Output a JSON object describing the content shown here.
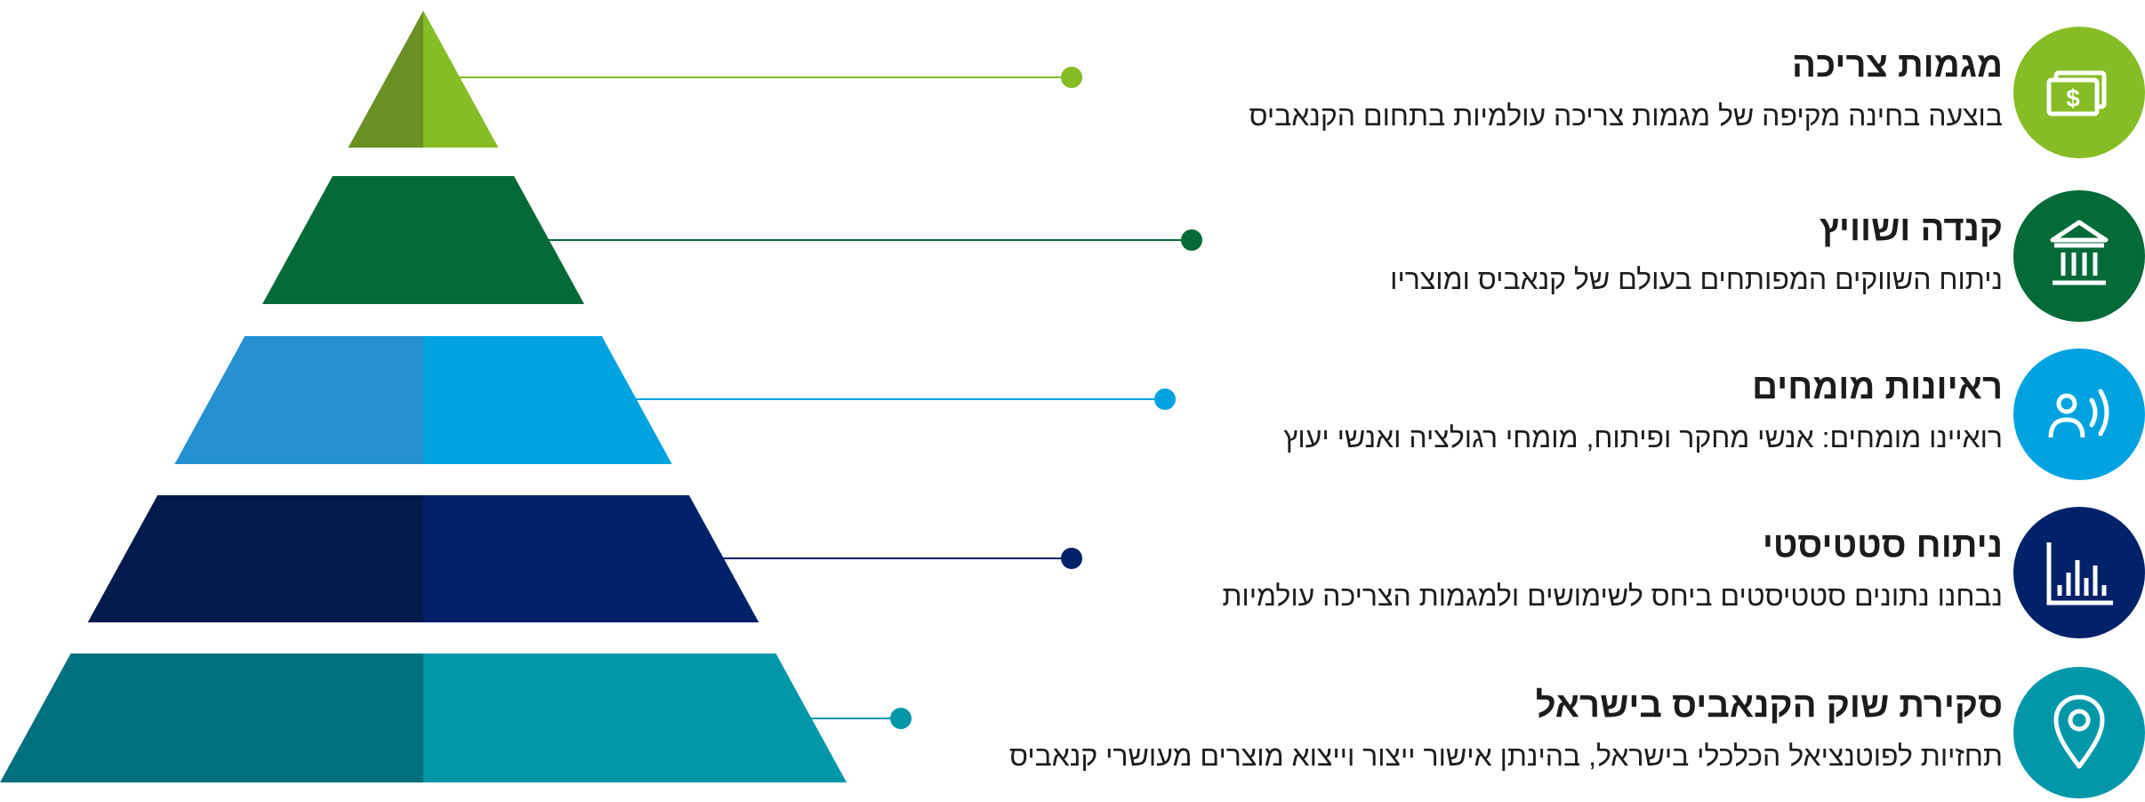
{
  "rows": [
    {
      "title": "מגמות צריכה",
      "description": "בוצעה בחינה מקיפה של מגמות צריכה עולמיות בתחום הקנאביס",
      "icon": "money-icon",
      "color_light": "#86bc25",
      "color_dark": "#6a8f22"
    },
    {
      "title": "קנדה ושוויץ",
      "description": "ניתוח השווקים המפותחים בעולם של קנאביס ומוצריו",
      "icon": "bank-icon",
      "color_light": "#046a38",
      "color_dark": "#046a38"
    },
    {
      "title": "ראיונות מומחים",
      "description": "רואיינו מומחים: אנשי מחקר ופיתוח, מומחי רגולציה ואנשי יעוץ",
      "icon": "speaking-person-icon",
      "color_light": "#00a3e0",
      "color_dark": "#2591d0"
    },
    {
      "title": "ניתוח סטטיסטי",
      "description": "נבחנו נתונים סטטיסטים ביחס לשימושים ולמגמות הצריכה עולמיות",
      "icon": "bar-chart-icon",
      "color_light": "#012169",
      "color_dark": "#041a4d"
    },
    {
      "title": "סקירת שוק הקנאביס בישראל",
      "description": "תחזיות לפוטנציאל הכלכלי בישראל, בהינתן אישור ייצור וייצוא מוצרים מעושרי קנאביס",
      "icon": "location-pin-icon",
      "color_light": "#0097a9",
      "color_dark": "#00707e"
    }
  ]
}
